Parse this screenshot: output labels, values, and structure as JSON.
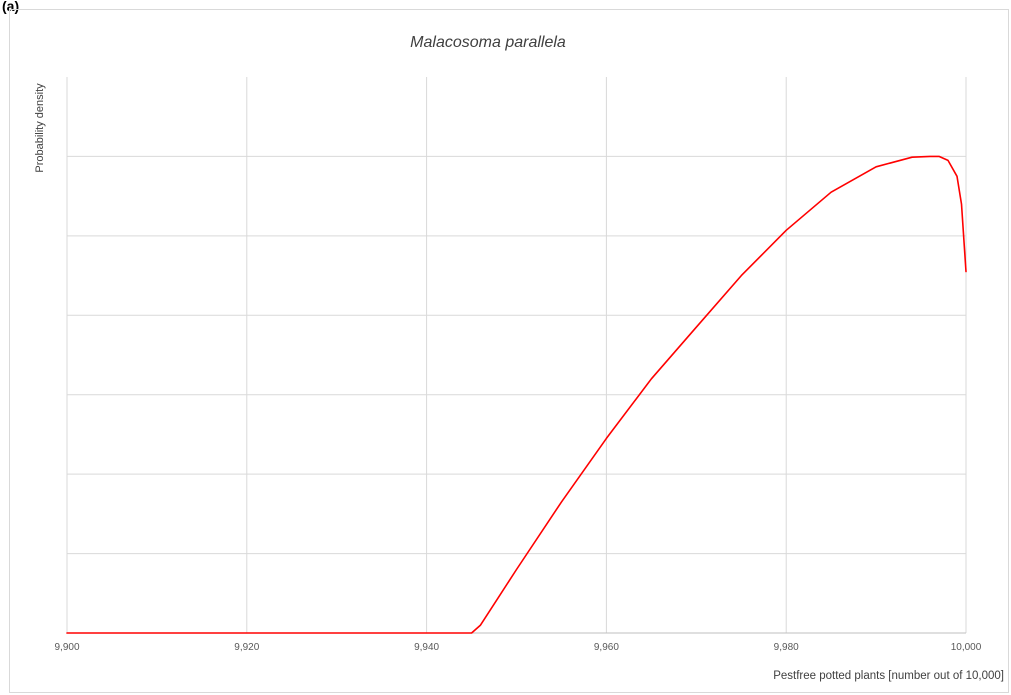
{
  "panel_label": "(a)",
  "chart_data": {
    "type": "line",
    "title": "Malacosoma parallela",
    "xlabel": "Pestfree potted plants [number out of 10,000]",
    "ylabel": "Probability density",
    "xlim": [
      9900,
      10000
    ],
    "x_ticks": [
      9900,
      9920,
      9940,
      9960,
      9980,
      10000
    ],
    "x_tick_labels": [
      "9,900",
      "9,920",
      "9,940",
      "9,960",
      "9,980",
      "10,000"
    ],
    "ylim": [
      0,
      7
    ],
    "y_gridlines": [
      1,
      2,
      3,
      4,
      5,
      6
    ],
    "y_tick_labels_shown": false,
    "grid": true,
    "legend": "none",
    "series": [
      {
        "color": "#ff0000",
        "x": [
          9900,
          9920,
          9945,
          9946,
          9948,
          9950,
          9955,
          9960,
          9965,
          9970,
          9975,
          9980,
          9985,
          9990,
          9994,
          9996,
          9997,
          9998,
          9999,
          9999.5,
          10000
        ],
        "y": [
          0,
          0,
          0,
          0.1,
          0.45,
          0.8,
          1.65,
          2.45,
          3.2,
          3.85,
          4.5,
          5.07,
          5.55,
          5.87,
          5.99,
          6.0,
          6.0,
          5.95,
          5.75,
          5.4,
          4.55
        ]
      }
    ]
  }
}
